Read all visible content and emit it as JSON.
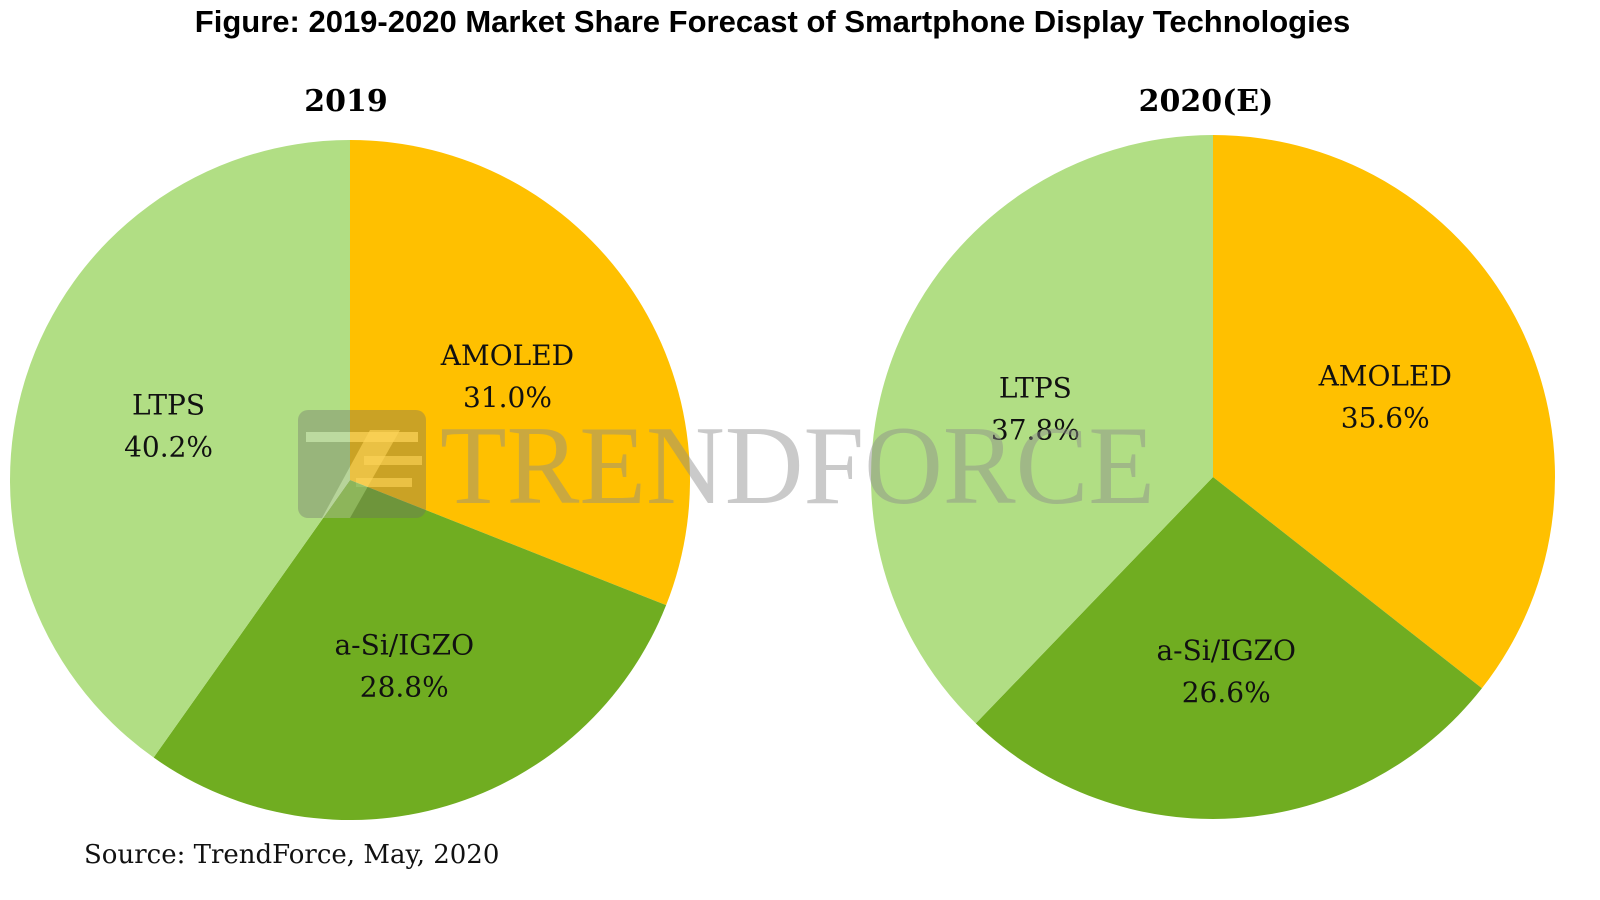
{
  "title": "Figure: 2019-2020 Market Share Forecast of Smartphone Display Technologies",
  "source": "Source: TrendForce, May, 2020",
  "watermark": {
    "letters": [
      "T",
      "REND",
      "F",
      "ORCE"
    ],
    "text": "TRENDFORCE"
  },
  "colors": {
    "AMOLED": "#FFC000",
    "a-Si/IGZO": "#70AD21",
    "LTPS": "#B1DE84"
  },
  "chart_data": [
    {
      "type": "pie",
      "title": "2019",
      "categories": [
        "AMOLED",
        "a-Si/IGZO",
        "LTPS"
      ],
      "values": [
        31.0,
        28.8,
        40.2
      ],
      "labels": [
        "31.0%",
        "28.8%",
        "40.2%"
      ],
      "start": "12 o'clock, clockwise",
      "unit": "%"
    },
    {
      "type": "pie",
      "title": "2020(E)",
      "categories": [
        "AMOLED",
        "a-Si/IGZO",
        "LTPS"
      ],
      "values": [
        35.6,
        26.6,
        37.8
      ],
      "labels": [
        "35.6%",
        "26.6%",
        "37.8%"
      ],
      "start": "12 o'clock, clockwise",
      "unit": "%"
    }
  ]
}
